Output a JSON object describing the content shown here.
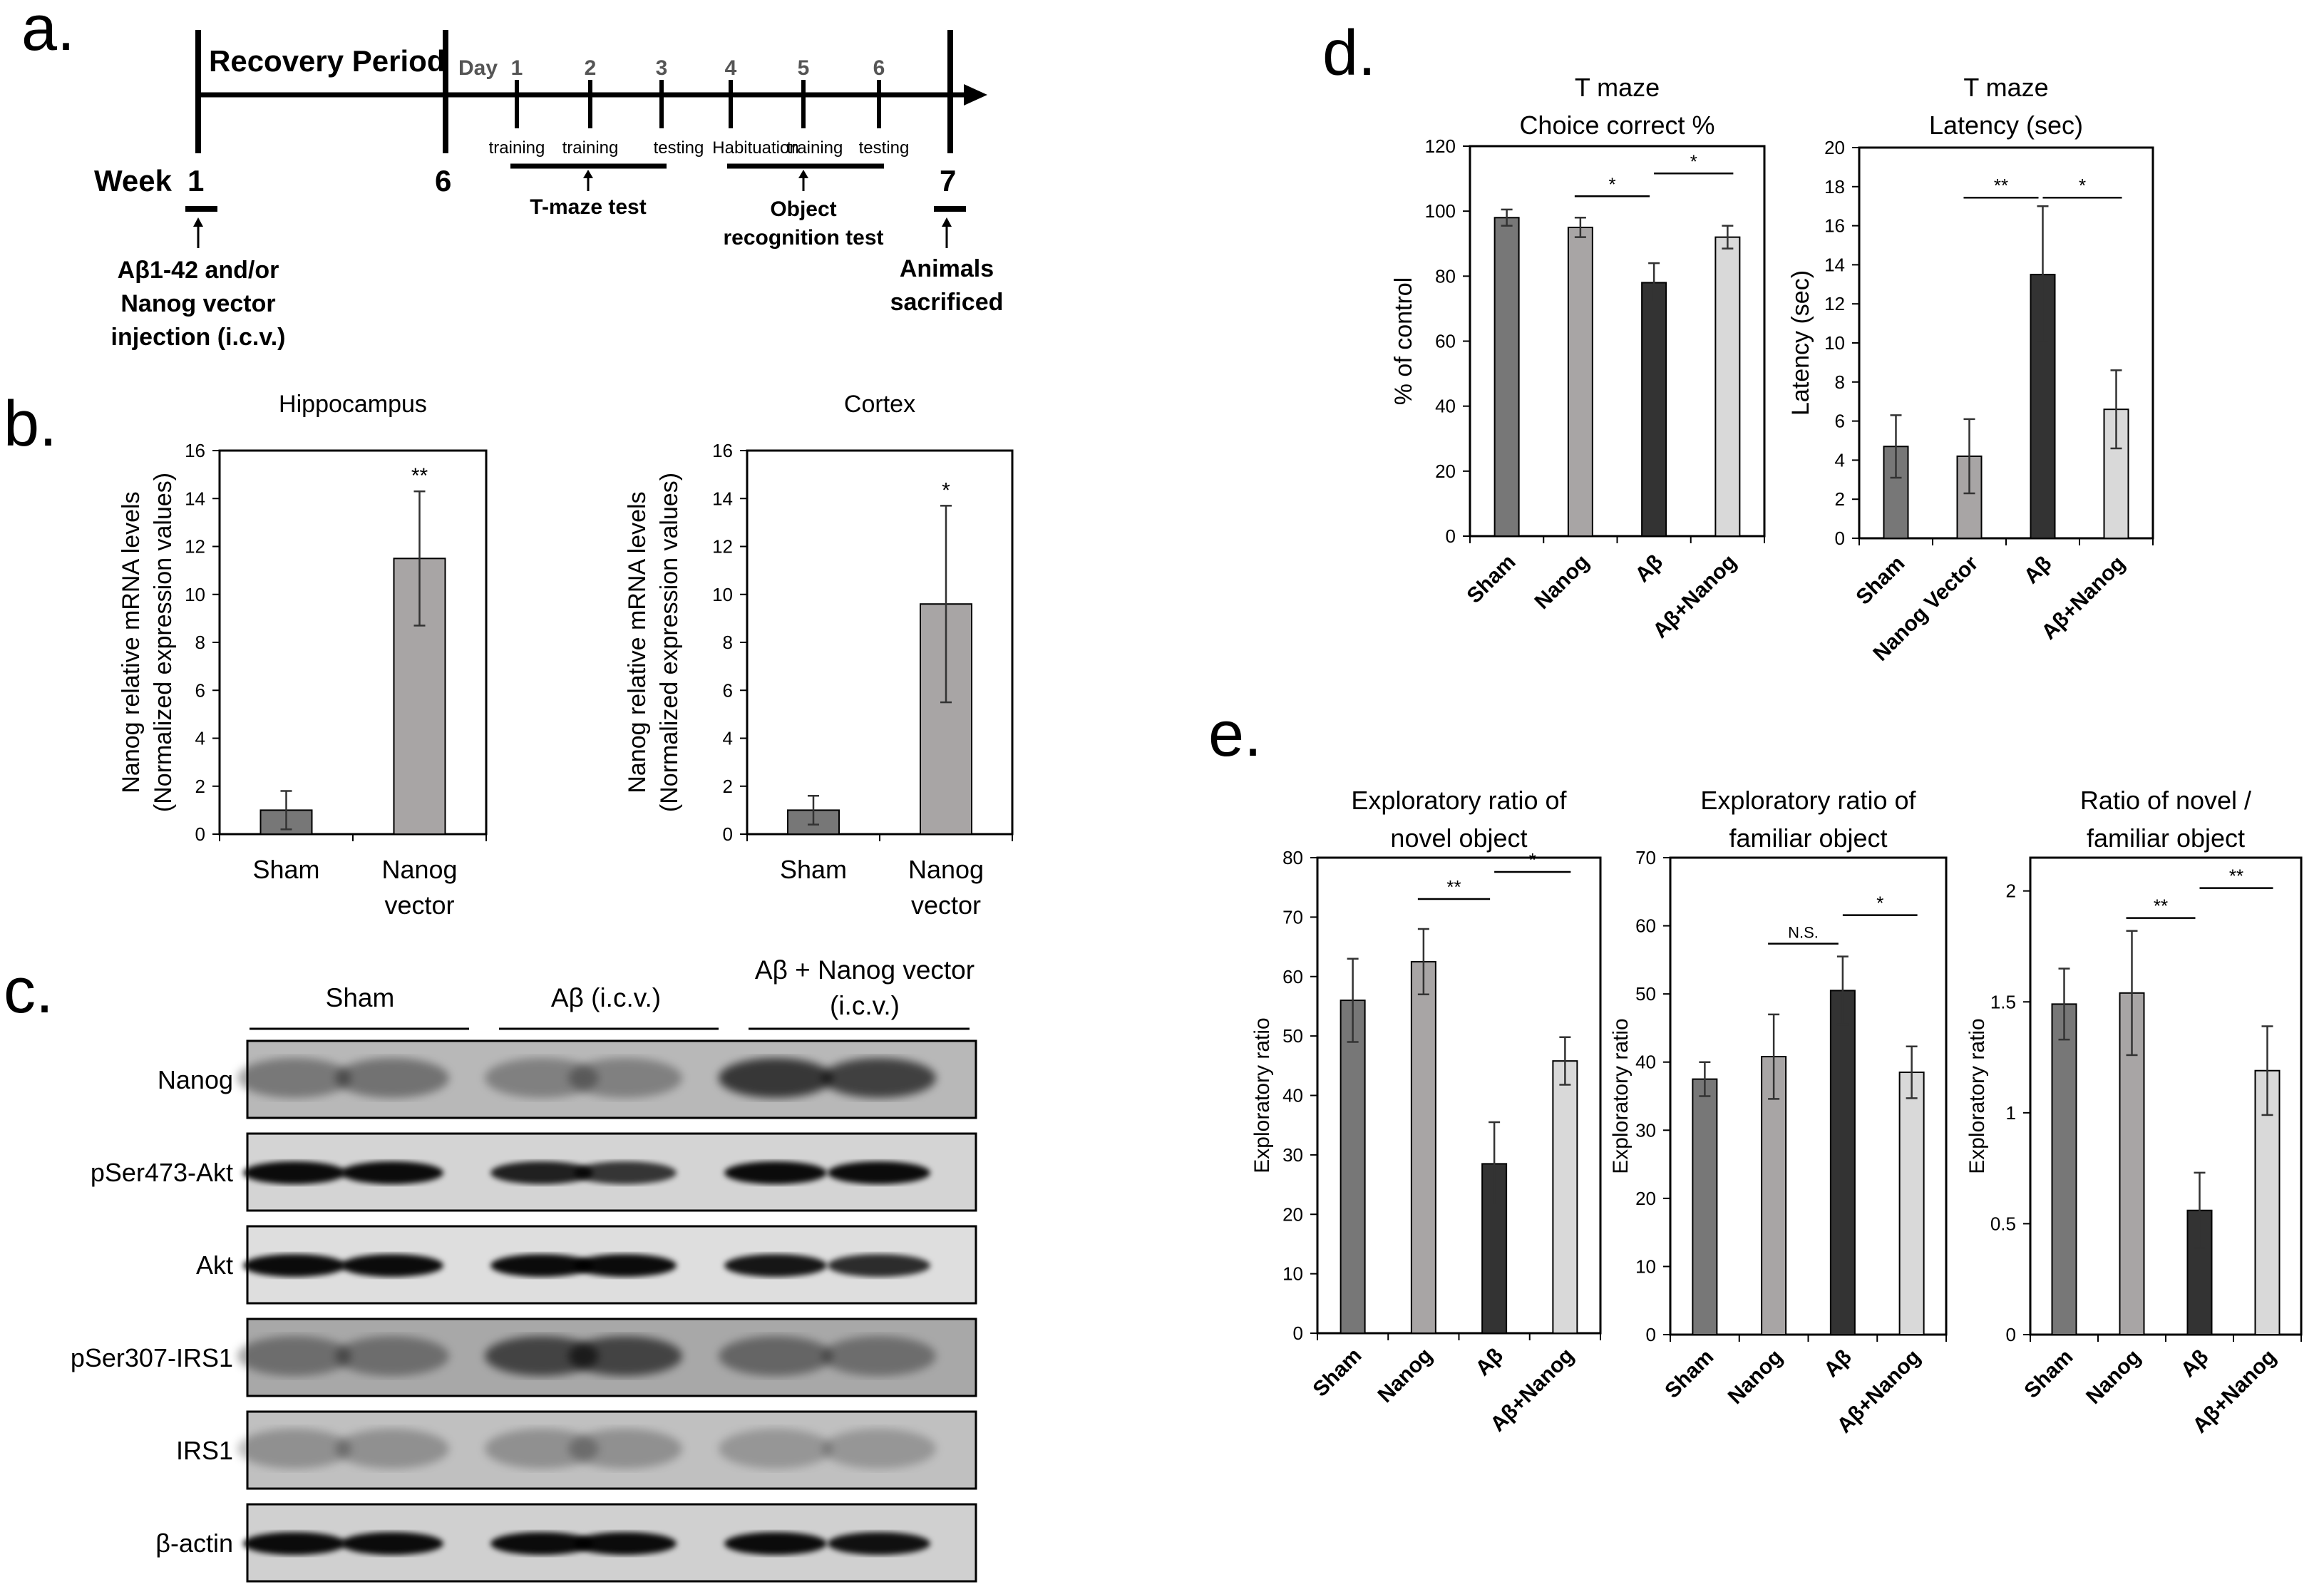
{
  "panels": {
    "a": "a.",
    "b": "b.",
    "c": "c.",
    "d": "d.",
    "e": "e."
  },
  "timeline": {
    "recovery": "Recovery Period",
    "week_label": "Week",
    "day_label": "Day",
    "weeks": [
      "1",
      "6",
      "7"
    ],
    "days": [
      "1",
      "2",
      "3",
      "4",
      "5",
      "6"
    ],
    "stages": [
      "training",
      "training",
      "testing",
      "Habituation",
      "training",
      "testing"
    ],
    "tmaze_label": "T-maze test",
    "object_label_1": "Object",
    "object_label_2": "recognition test",
    "inj_1": "Aβ1-42 and/or",
    "inj_2": "Nanog vector",
    "inj_3": "injection (i.c.v.)",
    "sac_1": "Animals",
    "sac_2": "sacrificed"
  },
  "blot": {
    "groups": [
      "Sham",
      "Aβ (i.c.v.)",
      "Aβ + Nanog vector",
      "(i.c.v.)"
    ],
    "rows": [
      "Nanog",
      "pSer473-Akt",
      "Akt",
      "pSer307-IRS1",
      "IRS1",
      "β-actin"
    ]
  },
  "chart_data": [
    {
      "id": "b1",
      "type": "bar",
      "title": "Hippocampus",
      "categories": [
        "Sham",
        "Nanog vector"
      ],
      "values": [
        1,
        11.5
      ],
      "errors": [
        0.8,
        2.8
      ],
      "sig": [
        "",
        "**"
      ],
      "ylabel": "Nanog relative mRNA levels",
      "ylabel2": "(Normalized expression values)",
      "ylim": [
        0,
        16
      ],
      "ticks": [
        0,
        2,
        4,
        6,
        8,
        10,
        12,
        14,
        16
      ],
      "colors": [
        "#777777",
        "#a8a5a5"
      ]
    },
    {
      "id": "b2",
      "type": "bar",
      "title": "Cortex",
      "categories": [
        "Sham",
        "Nanog vector"
      ],
      "values": [
        1,
        9.6
      ],
      "errors": [
        0.6,
        4.1
      ],
      "sig": [
        "",
        "*"
      ],
      "ylabel": "Nanog relative mRNA levels",
      "ylabel2": "(Normalized expression values)",
      "ylim": [
        0,
        16
      ],
      "ticks": [
        0,
        2,
        4,
        6,
        8,
        10,
        12,
        14,
        16
      ],
      "colors": [
        "#777777",
        "#a8a5a5"
      ]
    },
    {
      "id": "d1",
      "type": "bar",
      "title": "T maze",
      "title2": "Choice correct %",
      "categories": [
        "Sham",
        "Nanog",
        "Aβ",
        "Aβ+Nanog"
      ],
      "values": [
        98,
        95,
        78,
        92
      ],
      "errors": [
        2.5,
        3,
        6,
        3.5
      ],
      "ylabel": "% of control",
      "ylim": [
        0,
        120
      ],
      "ticks": [
        0,
        20,
        40,
        60,
        80,
        100,
        120
      ],
      "brackets": [
        {
          "from": 1,
          "to": 2,
          "label": "*"
        },
        {
          "from": 2,
          "to": 3,
          "label": "*"
        }
      ],
      "colors": [
        "#777777",
        "#a8a5a5",
        "#333333",
        "#d9d9d9"
      ]
    },
    {
      "id": "d2",
      "type": "bar",
      "title": "T maze",
      "title2": "Latency (sec)",
      "categories": [
        "Sham",
        "Nanog Vector",
        "Aβ",
        "Aβ+Nanog"
      ],
      "values": [
        4.7,
        4.2,
        13.5,
        6.6
      ],
      "errors": [
        1.6,
        1.9,
        3.5,
        2
      ],
      "ylabel": "Latency (sec)",
      "ylim": [
        0,
        20
      ],
      "ticks": [
        0,
        2,
        4,
        6,
        8,
        10,
        12,
        14,
        16,
        18,
        20
      ],
      "brackets": [
        {
          "from": 1,
          "to": 2,
          "label": "**"
        },
        {
          "from": 2,
          "to": 3,
          "label": "*"
        }
      ],
      "colors": [
        "#777777",
        "#a8a5a5",
        "#333333",
        "#d9d9d9"
      ]
    },
    {
      "id": "e1",
      "type": "bar",
      "title": "Exploratory ratio of",
      "title2": "novel object",
      "categories": [
        "Sham",
        "Nanog",
        "Aβ",
        "Aβ+Nanog"
      ],
      "values": [
        56,
        62.5,
        28.5,
        45.8
      ],
      "errors": [
        7,
        5.5,
        7,
        4
      ],
      "ylabel": "Exploratory ratio",
      "ylim": [
        0,
        80
      ],
      "ticks": [
        0,
        10,
        20,
        30,
        40,
        50,
        60,
        70,
        80
      ],
      "brackets": [
        {
          "from": 1,
          "to": 2,
          "label": "**"
        },
        {
          "from": 2,
          "to": 3,
          "label": "*"
        }
      ],
      "colors": [
        "#777777",
        "#a8a5a5",
        "#333333",
        "#d9d9d9"
      ]
    },
    {
      "id": "e2",
      "type": "bar",
      "title": "Exploratory ratio of",
      "title2": "familiar object",
      "categories": [
        "Sham",
        "Nanog",
        "Aβ",
        "Aβ+Nanog"
      ],
      "values": [
        37.5,
        40.8,
        50.5,
        38.5
      ],
      "errors": [
        2.5,
        6.2,
        5,
        3.8
      ],
      "ylabel": "Exploratory ratio",
      "ylim": [
        0,
        70
      ],
      "ticks": [
        0,
        10,
        20,
        30,
        40,
        50,
        60,
        70
      ],
      "brackets": [
        {
          "from": 1,
          "to": 2,
          "label": "N.S."
        },
        {
          "from": 2,
          "to": 3,
          "label": "*"
        }
      ],
      "colors": [
        "#777777",
        "#a8a5a5",
        "#333333",
        "#d9d9d9"
      ]
    },
    {
      "id": "e3",
      "type": "bar",
      "title": "Ratio of novel /",
      "title2": "familiar object",
      "categories": [
        "Sham",
        "Nanog",
        "Aβ",
        "Aβ+Nanog"
      ],
      "values": [
        1.49,
        1.54,
        0.56,
        1.19
      ],
      "errors": [
        0.16,
        0.28,
        0.17,
        0.2
      ],
      "ylabel": "Exploratory ratio",
      "ylim": [
        0,
        2.15
      ],
      "ticks": [
        0,
        0.5,
        1,
        1.5,
        2
      ],
      "ticklabels": [
        "0",
        "0.5",
        "1",
        "1.5",
        "2"
      ],
      "brackets": [
        {
          "from": 1,
          "to": 2,
          "label": "**"
        },
        {
          "from": 2,
          "to": 3,
          "label": "**"
        }
      ],
      "colors": [
        "#777777",
        "#a8a5a5",
        "#333333",
        "#d9d9d9"
      ]
    }
  ]
}
